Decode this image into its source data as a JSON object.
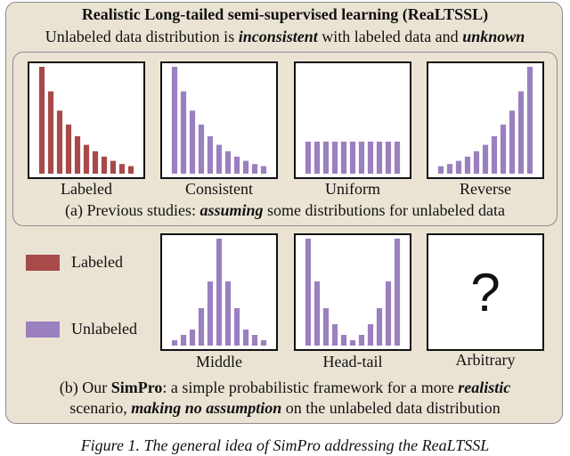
{
  "title": "Realistic Long-tailed semi-supervised learning (ReaLTSSL)",
  "subtitle": {
    "p1": "Unlabeled data distribution is ",
    "em1": "inconsistent",
    "p2": " with labeled data and ",
    "em2": "unknown"
  },
  "caption_a": {
    "p1": "(a) Previous studies: ",
    "em": "assuming",
    "p2": " some distributions for unlabeled data"
  },
  "caption_b": {
    "p1": "(b) Our ",
    "brand": "SimPro",
    "p2": ": a simple probabilistic framework for a more ",
    "em1": "realistic",
    "line2_p1": "scenario, ",
    "em2": "making no assumption",
    "line2_p2": " on the unlabeled data distribution"
  },
  "legend": [
    {
      "label": "Labeled",
      "color": "#a84a4a"
    },
    {
      "label": "Unlabeled",
      "color": "#9b80c0"
    }
  ],
  "question_mark": "?",
  "figure_caption": "Figure 1. The general idea of SimPro addressing the ReaLTSSL",
  "chart_data": [
    {
      "type": "bar",
      "label": "Labeled",
      "color": "#a84a4a",
      "values": [
        100,
        77,
        59,
        46,
        35,
        27,
        21,
        16,
        12,
        9,
        7
      ]
    },
    {
      "type": "bar",
      "label": "Consistent",
      "color": "#9b80c0",
      "values": [
        100,
        77,
        59,
        46,
        35,
        27,
        21,
        16,
        12,
        9,
        7
      ]
    },
    {
      "type": "bar",
      "label": "Uniform",
      "color": "#9b80c0",
      "values": [
        30,
        30,
        30,
        30,
        30,
        30,
        30,
        30,
        30,
        30,
        30
      ]
    },
    {
      "type": "bar",
      "label": "Reverse",
      "color": "#9b80c0",
      "values": [
        7,
        9,
        12,
        16,
        21,
        27,
        35,
        46,
        59,
        77,
        100
      ]
    },
    {
      "type": "bar",
      "label": "Middle",
      "color": "#9b80c0",
      "values": [
        5,
        10,
        15,
        35,
        60,
        100,
        60,
        35,
        15,
        10,
        5
      ]
    },
    {
      "type": "bar",
      "label": "Head-tail",
      "color": "#9b80c0",
      "values": [
        100,
        60,
        35,
        20,
        10,
        5,
        10,
        20,
        35,
        60,
        100
      ]
    },
    {
      "type": "empty",
      "label": "Arbitrary",
      "values": []
    }
  ]
}
